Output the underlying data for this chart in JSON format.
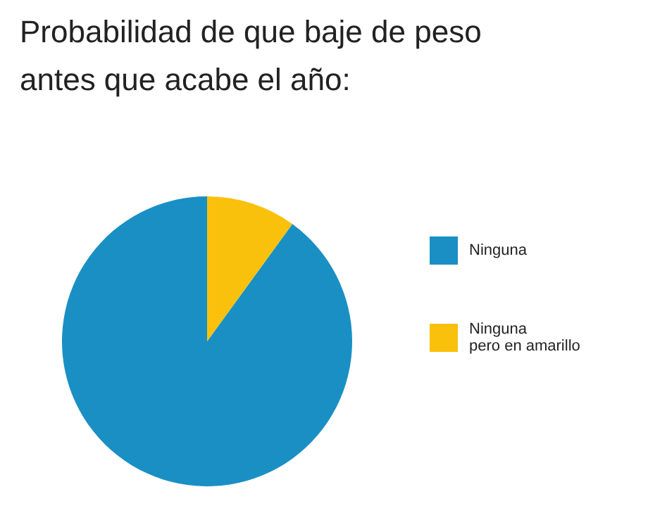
{
  "chart_data": {
    "type": "pie",
    "title": "Probabilidad de que baje de peso antes que acabe el año:",
    "categories": [
      "Ninguna",
      "Ninguna\npero en amarillo"
    ],
    "values": [
      90,
      10
    ],
    "colors": [
      "#1a8fc4",
      "#f9c10c"
    ],
    "legend": "right"
  }
}
